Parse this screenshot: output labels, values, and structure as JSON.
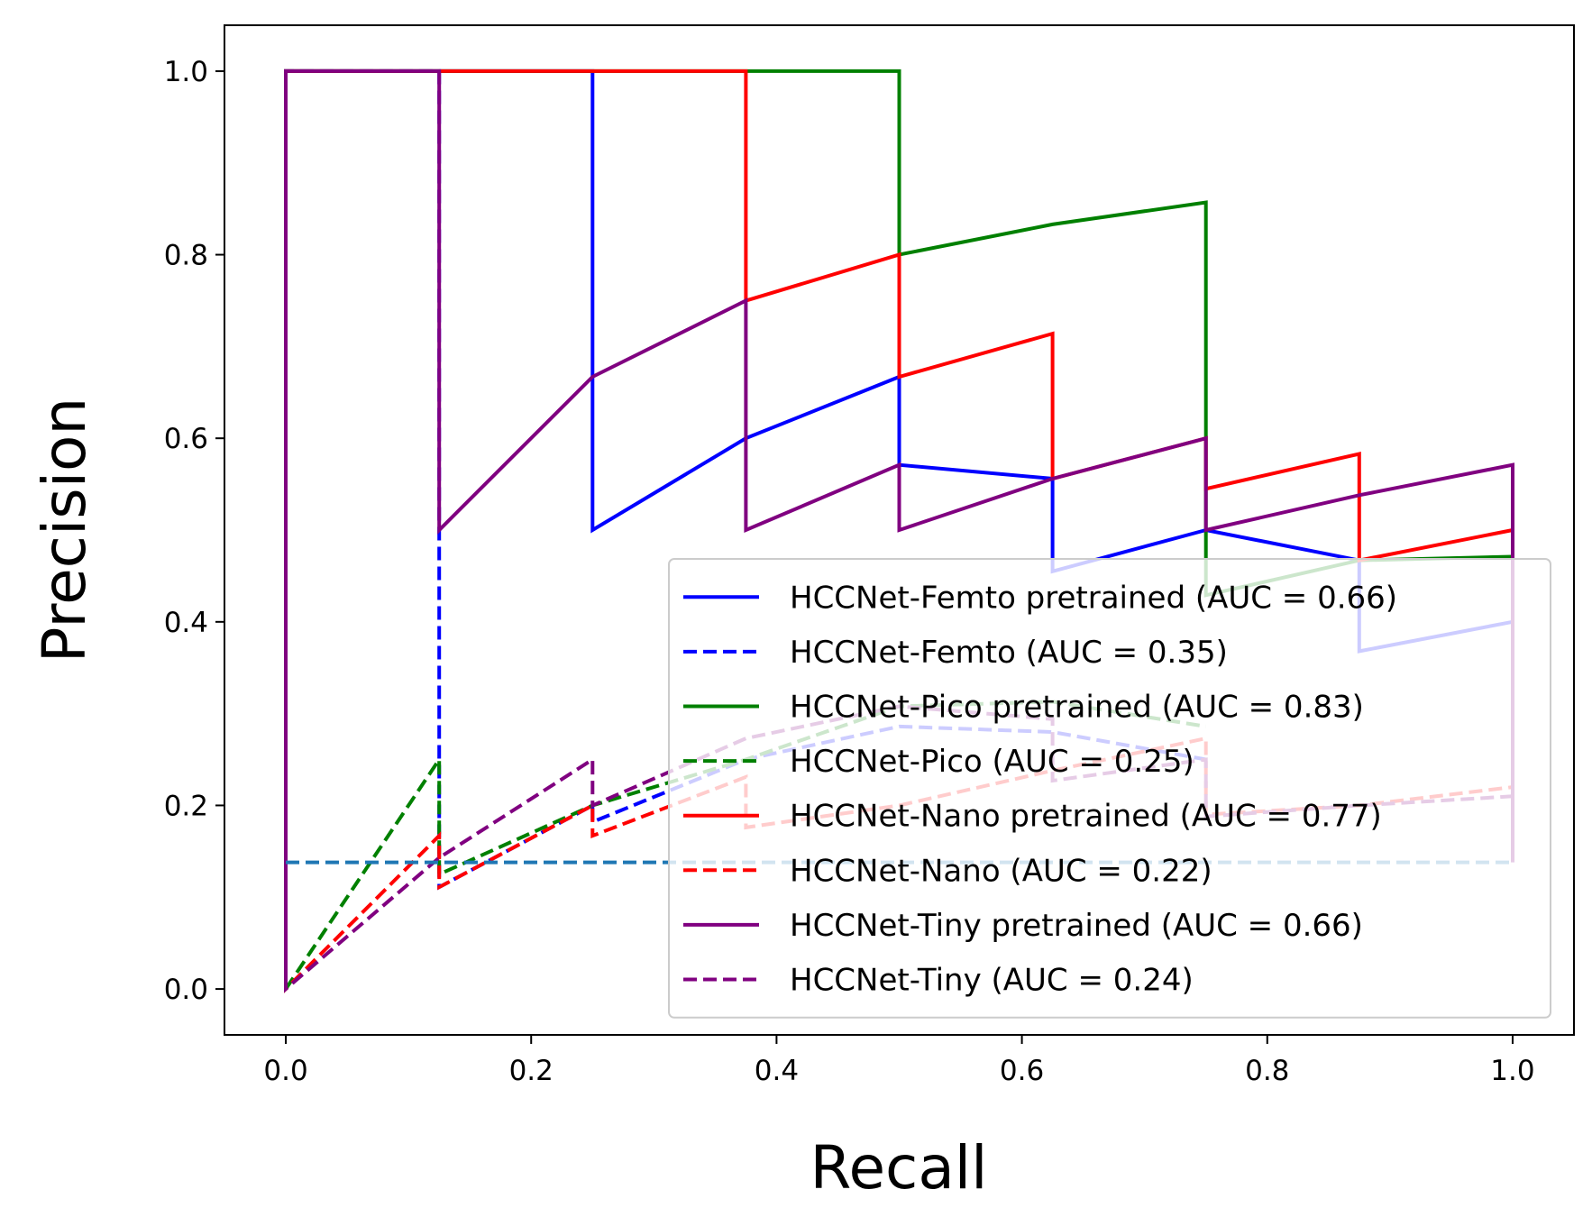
{
  "chart_data": {
    "type": "line",
    "title": "",
    "xlabel": "Recall",
    "ylabel": "Precision",
    "xlim": [
      -0.05,
      1.05
    ],
    "ylim": [
      -0.05,
      1.05
    ],
    "xticks": [
      "0.0",
      "0.2",
      "0.4",
      "0.6",
      "0.8",
      "1.0"
    ],
    "yticks": [
      "0.0",
      "0.2",
      "0.4",
      "0.6",
      "0.8",
      "1.0"
    ],
    "grid": false,
    "legend_position": "lower-right",
    "series": [
      {
        "name": "HCCNet-Femto pretrained (AUC = 0.66)",
        "color": "#0000ff",
        "dashed": false,
        "x": [
          0,
          0,
          0.25,
          0.25,
          0.375,
          0.5,
          0.5,
          0.625,
          0.625,
          0.75,
          0.875,
          0.875,
          1.0
        ],
        "y": [
          0,
          1.0,
          1.0,
          0.5,
          0.6,
          0.667,
          0.571,
          0.556,
          0.455,
          0.5,
          0.467,
          0.368,
          0.4
        ]
      },
      {
        "name": "HCCNet-Femto  (AUC = 0.35)",
        "color": "#0000ff",
        "dashed": true,
        "x": [
          0,
          0,
          0.125,
          0.125,
          0.125,
          0.25,
          0.25,
          0.375,
          0.5,
          0.625,
          0.75
        ],
        "y": [
          0,
          1.0,
          1.0,
          0.5,
          0.111,
          0.2,
          0.182,
          0.25,
          0.286,
          0.28,
          0.25
        ]
      },
      {
        "name": "HCCNet-Pico pretrained (AUC = 0.83)",
        "color": "#008000",
        "dashed": false,
        "x": [
          0,
          0,
          0.5,
          0.5,
          0.625,
          0.75,
          0.75,
          0.875,
          1.0
        ],
        "y": [
          0,
          1.0,
          1.0,
          0.8,
          0.833,
          0.857,
          0.429,
          0.467,
          0.471
        ]
      },
      {
        "name": "HCCNet-Pico  (AUC = 0.25)",
        "color": "#008000",
        "dashed": true,
        "x": [
          0,
          0.125,
          0.125,
          0.25,
          0.375,
          0.5,
          0.625,
          0.75
        ],
        "y": [
          0,
          0.25,
          0.125,
          0.2,
          0.25,
          0.308,
          0.313,
          0.286
        ]
      },
      {
        "name": "HCCNet-Nano pretrained (AUC = 0.77)",
        "color": "#ff0000",
        "dashed": false,
        "x": [
          0,
          0,
          0.375,
          0.375,
          0.5,
          0.5,
          0.625,
          0.625,
          0.75,
          0.75,
          0.875,
          0.875,
          1.0
        ],
        "y": [
          0,
          1.0,
          1.0,
          0.75,
          0.8,
          0.667,
          0.714,
          0.556,
          0.6,
          0.545,
          0.583,
          0.467,
          0.5
        ]
      },
      {
        "name": "HCCNet-Nano  (AUC = 0.22)",
        "color": "#ff0000",
        "dashed": true,
        "x": [
          0,
          0,
          0,
          0.125,
          0.125,
          0.25,
          0.25,
          0.375,
          0.375,
          0.5,
          0.625,
          0.75,
          0.75,
          0.875,
          1.0
        ],
        "y": [
          0,
          1.0,
          0,
          0.167,
          0.111,
          0.2,
          0.167,
          0.231,
          0.176,
          0.2,
          0.238,
          0.273,
          0.19,
          0.2,
          0.22
        ]
      },
      {
        "name": "HCCNet-Tiny pretrained (AUC = 0.66)",
        "color": "#800080",
        "dashed": false,
        "x": [
          0,
          0,
          0.125,
          0.125,
          0.25,
          0.375,
          0.375,
          0.5,
          0.5,
          0.625,
          0.75,
          0.75,
          0.875,
          1.0,
          1.0
        ],
        "y": [
          0,
          1.0,
          1.0,
          0.5,
          0.667,
          0.75,
          0.5,
          0.571,
          0.5,
          0.556,
          0.6,
          0.5,
          0.538,
          0.571,
          0.138
        ]
      },
      {
        "name": "HCCNet-Tiny  (AUC = 0.24)",
        "color": "#800080",
        "dashed": true,
        "x": [
          0,
          0,
          0,
          0.125,
          0.25,
          0.25,
          0.375,
          0.5,
          0.625,
          0.625,
          0.75,
          0.75,
          0.875,
          1.0
        ],
        "y": [
          0,
          1.0,
          0,
          0.143,
          0.25,
          0.2,
          0.273,
          0.308,
          0.294,
          0.227,
          0.25,
          0.188,
          0.2,
          0.21
        ]
      },
      {
        "name": "",
        "color": "#1f77b4",
        "dashed": true,
        "x": [
          0,
          1.0
        ],
        "y": [
          0.138,
          0.138
        ]
      }
    ]
  }
}
